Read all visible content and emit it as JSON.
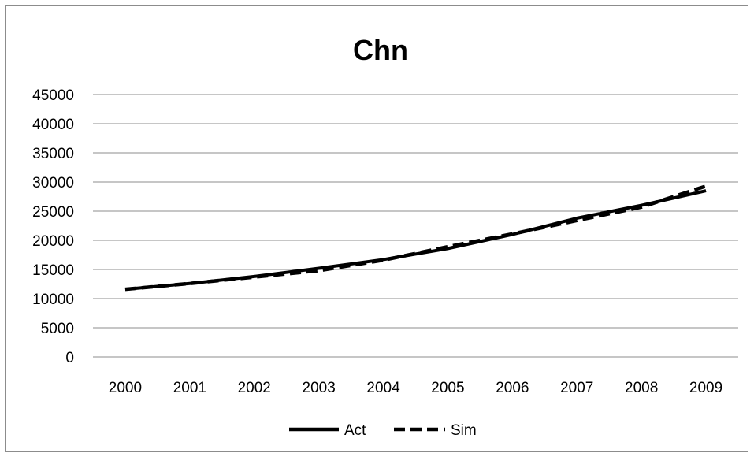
{
  "chart_data": {
    "type": "line",
    "title": "Chn",
    "xlabel": "",
    "ylabel": "",
    "categories": [
      "2000",
      "2001",
      "2002",
      "2003",
      "2004",
      "2005",
      "2006",
      "2007",
      "2008",
      "2009"
    ],
    "ylim": [
      0,
      45000
    ],
    "yticks": [
      "0",
      "5000",
      "10000",
      "15000",
      "20000",
      "25000",
      "30000",
      "35000",
      "40000",
      "45000"
    ],
    "grid": true,
    "legend_position": "bottom",
    "series": [
      {
        "name": "Act",
        "style": "solid",
        "color": "#000000",
        "values": [
          11600,
          12600,
          13800,
          15200,
          16700,
          18600,
          21000,
          23800,
          26000,
          28500
        ]
      },
      {
        "name": "Sim",
        "style": "dashed",
        "color": "#000000",
        "values": [
          11600,
          12600,
          13700,
          14800,
          16600,
          18900,
          21100,
          23400,
          25700,
          29300
        ]
      }
    ]
  }
}
